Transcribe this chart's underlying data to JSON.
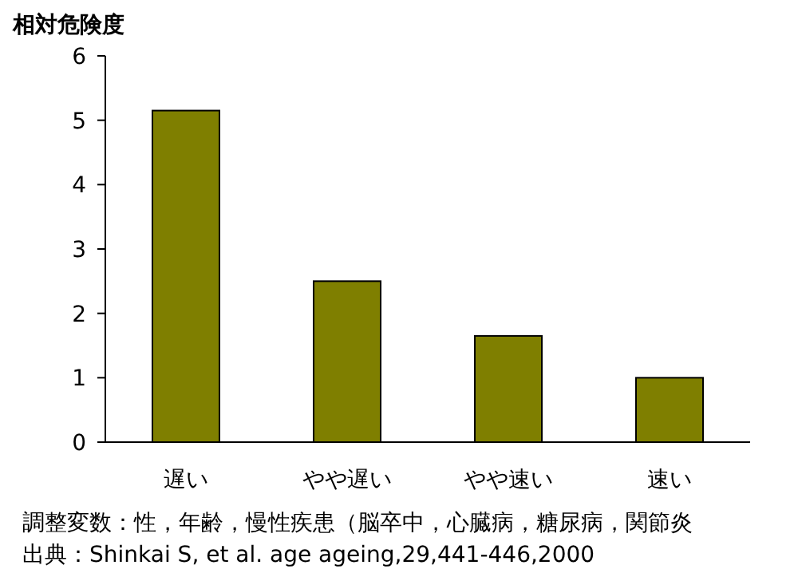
{
  "chart_data": {
    "type": "bar",
    "ylabel": "相対危険度",
    "categories": [
      "遅い",
      "やや遅い",
      "やや速い",
      "速い"
    ],
    "values": [
      5.15,
      2.5,
      1.65,
      1.0
    ],
    "color": "#7f7f00",
    "ylim": [
      0,
      6
    ],
    "yticks": [
      0,
      1,
      2,
      3,
      4,
      5,
      6
    ],
    "annotations": [
      "調整変数：性，年齢，慢性疾患（脳卒中，心臓病，糖尿病，関節炎",
      "出典：Shinkai S, et al. age ageing,29,441-446,2000"
    ]
  }
}
